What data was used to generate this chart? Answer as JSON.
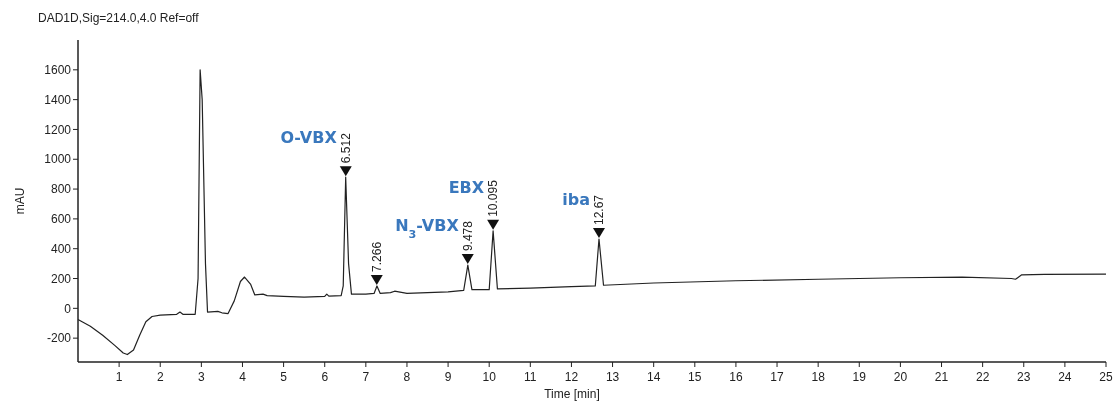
{
  "chart_data": {
    "type": "line",
    "title": "DAD1D,Sig=214.0,4.0  Ref=off",
    "xlabel": "Time [min]",
    "ylabel": "mAU",
    "x": [
      0,
      0.3,
      0.6,
      0.9,
      1.1,
      1.2,
      1.35,
      1.5,
      1.65,
      1.8,
      2.0,
      2.4,
      2.48,
      2.55,
      2.85,
      2.92,
      2.97,
      3.02,
      3.1,
      3.15,
      3.4,
      3.5,
      3.65,
      3.8,
      3.95,
      4.05,
      4.2,
      4.3,
      4.5,
      4.6,
      5.0,
      5.5,
      6.0,
      6.05,
      6.1,
      6.4,
      6.45,
      6.51,
      6.58,
      6.65,
      7.0,
      7.2,
      7.27,
      7.35,
      7.6,
      7.7,
      7.8,
      8.0,
      9.0,
      9.38,
      9.48,
      9.58,
      10.0,
      10.095,
      10.2,
      11,
      12,
      12.58,
      12.67,
      12.78,
      14,
      16,
      18,
      20,
      21.5,
      22.7,
      22.8,
      22.95,
      23.5,
      25
    ],
    "series": [
      {
        "color": "#222222",
        "values": [
          -75,
          -120,
          -180,
          -250,
          -300,
          -310,
          -280,
          -180,
          -90,
          -55,
          -45,
          -40,
          -25,
          -40,
          -40,
          200,
          1600,
          1400,
          300,
          -25,
          -20,
          -30,
          -35,
          50,
          180,
          210,
          160,
          90,
          95,
          85,
          80,
          75,
          80,
          95,
          82,
          85,
          150,
          880,
          300,
          95,
          95,
          100,
          150,
          100,
          105,
          115,
          110,
          100,
          110,
          120,
          290,
          125,
          125,
          520,
          130,
          135,
          145,
          150,
          465,
          155,
          170,
          185,
          195,
          205,
          210,
          200,
          195,
          225,
          228,
          230
        ]
      }
    ],
    "xlim": [
      0,
      25
    ],
    "xticks": [
      1,
      2,
      3,
      4,
      5,
      6,
      7,
      8,
      9,
      10,
      11,
      12,
      13,
      14,
      15,
      16,
      17,
      18,
      19,
      20,
      21,
      22,
      23,
      24,
      25
    ],
    "ylim": [
      -360,
      1800
    ],
    "yticks": [
      -200,
      0,
      200,
      400,
      600,
      800,
      1000,
      1200,
      1400,
      1600
    ],
    "grid": false,
    "marker": "none",
    "line_style": "solid",
    "annotations": [
      {
        "text": "6.512",
        "x": 6.512,
        "y": 880
      },
      {
        "text": "7.266",
        "x": 7.266,
        "y": 150
      },
      {
        "text": "9.478",
        "x": 9.478,
        "y": 290
      },
      {
        "text": "10.095",
        "x": 10.095,
        "y": 520
      },
      {
        "text": "12.67",
        "x": 12.67,
        "y": 465
      },
      {
        "text": "O-VBX",
        "x": 6.512,
        "y": 880
      },
      {
        "text": "N$_{3}$-VBX",
        "x": 9.478,
        "y": 290
      },
      {
        "text": "EBX",
        "x": 10.095,
        "y": 520
      },
      {
        "text": "iba",
        "x": 12.67,
        "y": 465
      }
    ]
  }
}
